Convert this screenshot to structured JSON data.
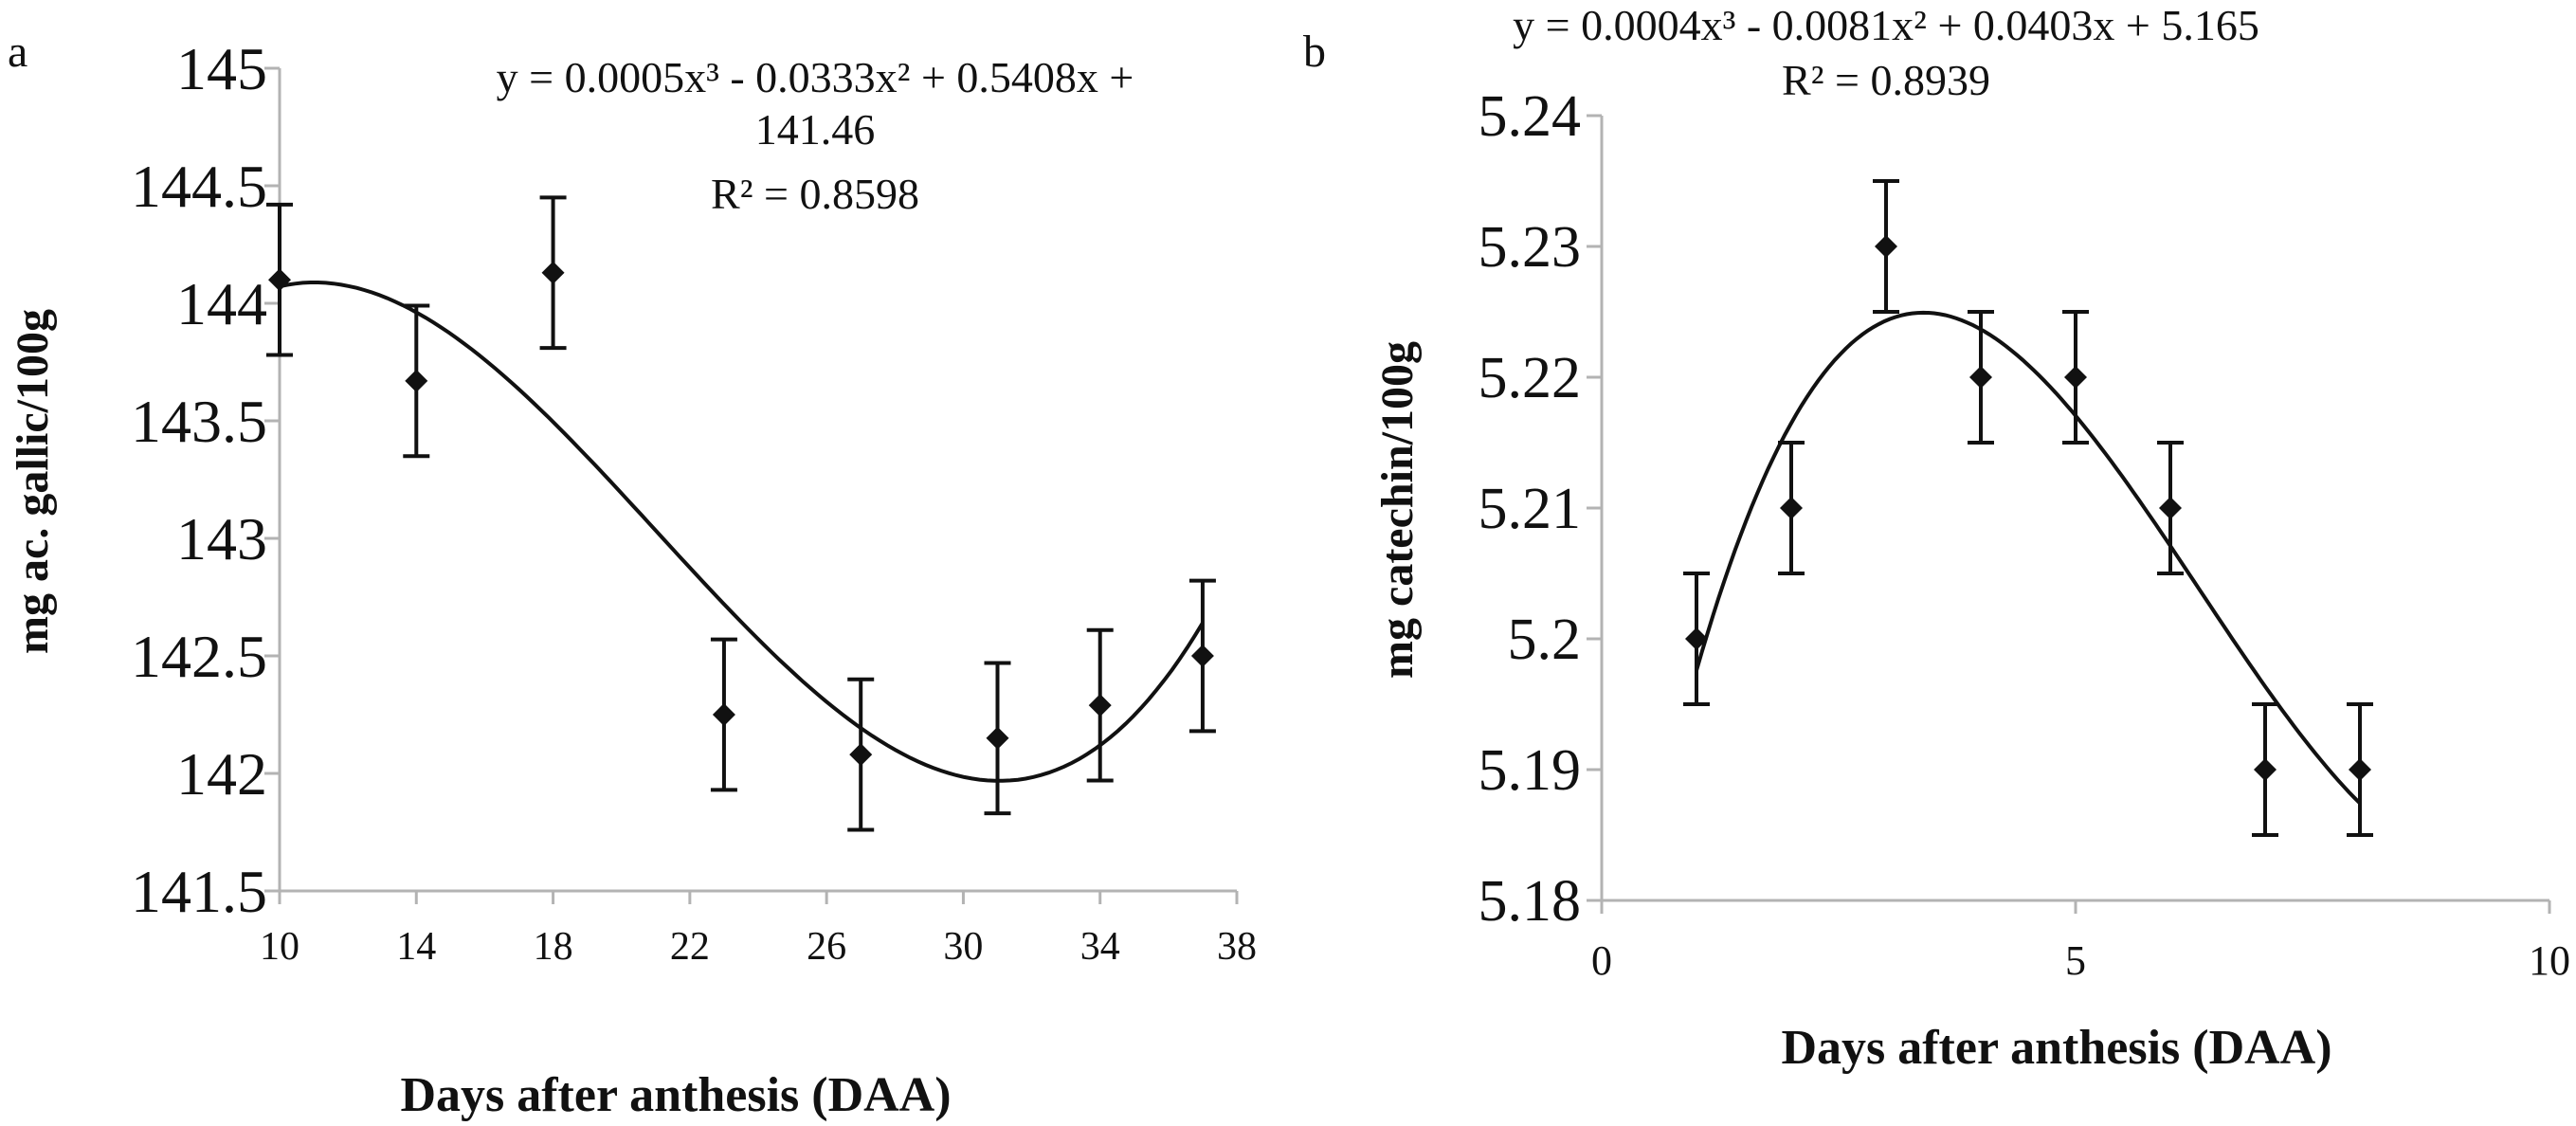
{
  "chart_data": [
    {
      "type": "scatter",
      "panel_label": "a",
      "xlabel": "Days after anthesis (DAA)",
      "ylabel": "mg  ac. gallic/100g",
      "xlim": [
        10,
        38
      ],
      "ylim": [
        141.5,
        145
      ],
      "x_ticks": [
        "10",
        "14",
        "18",
        "22",
        "26",
        "30",
        "34",
        "38"
      ],
      "y_ticks": [
        "141.5",
        "142",
        "142.5",
        "143",
        "143.5",
        "144",
        "144.5",
        "145"
      ],
      "grid": false,
      "points": [
        {
          "x": 10,
          "y": 144.1,
          "err": 0.32
        },
        {
          "x": 14,
          "y": 143.67,
          "err": 0.32
        },
        {
          "x": 18,
          "y": 144.13,
          "err": 0.32
        },
        {
          "x": 23,
          "y": 142.25,
          "err": 0.32
        },
        {
          "x": 27,
          "y": 142.08,
          "err": 0.32
        },
        {
          "x": 31,
          "y": 142.15,
          "err": 0.32
        },
        {
          "x": 34,
          "y": 142.29,
          "err": 0.32
        },
        {
          "x": 37,
          "y": 142.5,
          "err": 0.32
        }
      ],
      "trendline": {
        "type": "polynomial",
        "order": 3,
        "x_range": [
          10,
          37
        ]
      },
      "equation_lines": [
        "y = 0.0005x³ - 0.0333x² + 0.5408x +",
        "141.46",
        "R² = 0.8598"
      ]
    },
    {
      "type": "scatter",
      "panel_label": "b",
      "xlabel": "Days after anthesis (DAA)",
      "ylabel": "mg  catechin/100g",
      "xlim": [
        0,
        10
      ],
      "ylim": [
        5.18,
        5.24
      ],
      "x_ticks": [
        "0",
        "5",
        "10"
      ],
      "y_ticks": [
        "5.18",
        "5.19",
        "5.2",
        "5.21",
        "5.22",
        "5.23",
        "5.24"
      ],
      "grid": false,
      "points": [
        {
          "x": 1,
          "y": 5.2,
          "err": 0.005
        },
        {
          "x": 2,
          "y": 5.21,
          "err": 0.005
        },
        {
          "x": 3,
          "y": 5.23,
          "err": 0.005
        },
        {
          "x": 4,
          "y": 5.22,
          "err": 0.005
        },
        {
          "x": 5,
          "y": 5.22,
          "err": 0.005
        },
        {
          "x": 6,
          "y": 5.21,
          "err": 0.005
        },
        {
          "x": 7,
          "y": 5.19,
          "err": 0.005
        },
        {
          "x": 8,
          "y": 5.19,
          "err": 0.005
        }
      ],
      "trendline": {
        "type": "polynomial",
        "order": 3,
        "x_range": [
          1,
          8
        ]
      },
      "equation_lines": [
        "y = 0.0004x³ - 0.0081x² + 0.0403x + 5.165",
        "R² = 0.8939"
      ]
    }
  ]
}
